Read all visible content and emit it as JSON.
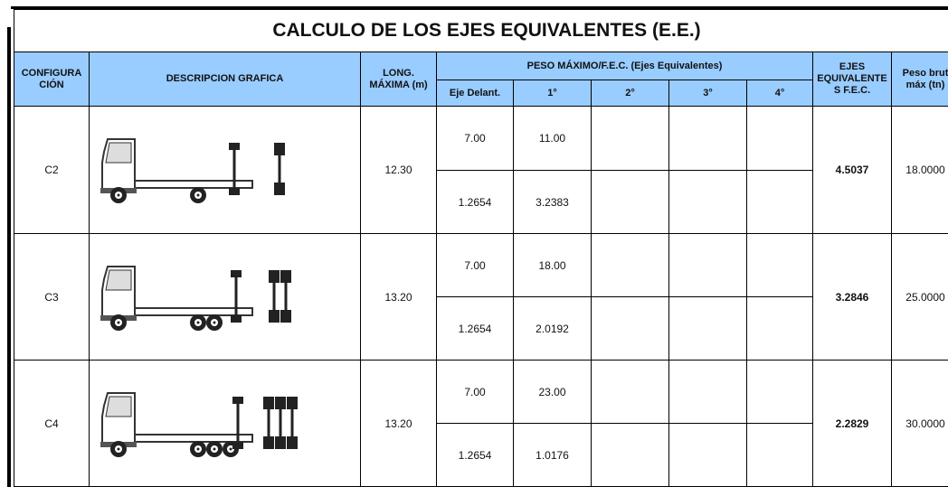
{
  "title": "CALCULO DE LOS EJES EQUIVALENTES (E.E.)",
  "headers": {
    "config": [
      "CONFIGURA",
      "CIÓN"
    ],
    "description": "DESCRIPCION GRAFICA",
    "length": [
      "LONG.",
      "MÁXIMA (m)"
    ],
    "weight": "PESO MÁXIMO/F.E.C. (Ejes Equivalentes)",
    "axles": [
      "Eje Delant.",
      "1°",
      "2°",
      "3°",
      "4°"
    ],
    "equivalent": [
      "EJES",
      "EQUIVALENTE",
      "S F.E.C."
    ],
    "gross": [
      "Peso brut",
      "máx (tn)"
    ]
  },
  "rows": [
    {
      "config": "C2",
      "length": "12.30",
      "weights": [
        "7.00",
        "11.00"
      ],
      "factors": [
        "1.2654",
        "3.2383"
      ],
      "equivalent": "4.5037",
      "gross": "18.0000"
    },
    {
      "config": "C3",
      "length": "13.20",
      "weights": [
        "7.00",
        "18.00"
      ],
      "factors": [
        "1.2654",
        "2.0192"
      ],
      "equivalent": "3.2846",
      "gross": "25.0000"
    },
    {
      "config": "C4",
      "length": "13.20",
      "weights": [
        "7.00",
        "23.00"
      ],
      "factors": [
        "1.2654",
        "1.0176"
      ],
      "equivalent": "2.2829",
      "gross": "30.0000"
    }
  ]
}
